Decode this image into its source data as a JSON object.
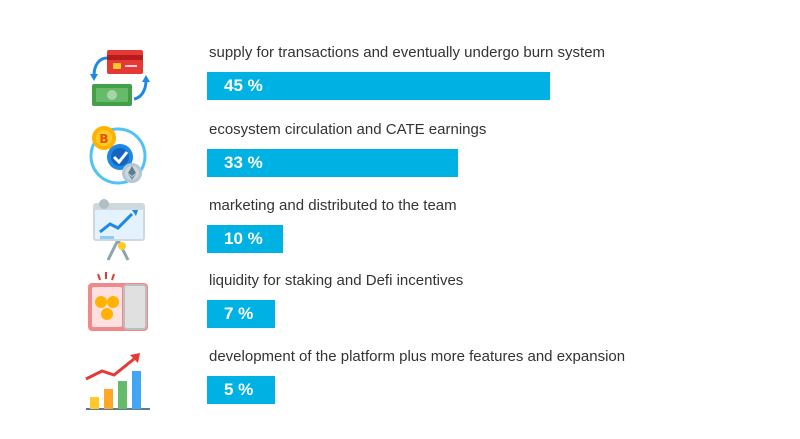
{
  "colors": {
    "bar": "#00b2e3",
    "label_text": "#333333",
    "bar_text": "#ffffff"
  },
  "chart_data": {
    "type": "bar",
    "orientation": "horizontal",
    "categories": [
      "supply for transactions and eventually undergo burn system",
      "ecosystem circulation and CATE earnings",
      "marketing and distributed to the team",
      "liquidity for staking and Defi incentives",
      "development of the platform plus more features and expansion"
    ],
    "values": [
      45,
      33,
      10,
      7,
      5
    ],
    "value_labels": [
      "45 %",
      "33 %",
      "10 %",
      "7 %",
      "5 %"
    ],
    "unit": "%",
    "icons": [
      "card-cash-exchange-icon",
      "crypto-coins-cycle-icon",
      "presentation-board-icon",
      "coin-safe-icon",
      "growth-bar-chart-icon"
    ],
    "xlim": [
      0,
      100
    ],
    "grid": false,
    "legend": "none"
  }
}
